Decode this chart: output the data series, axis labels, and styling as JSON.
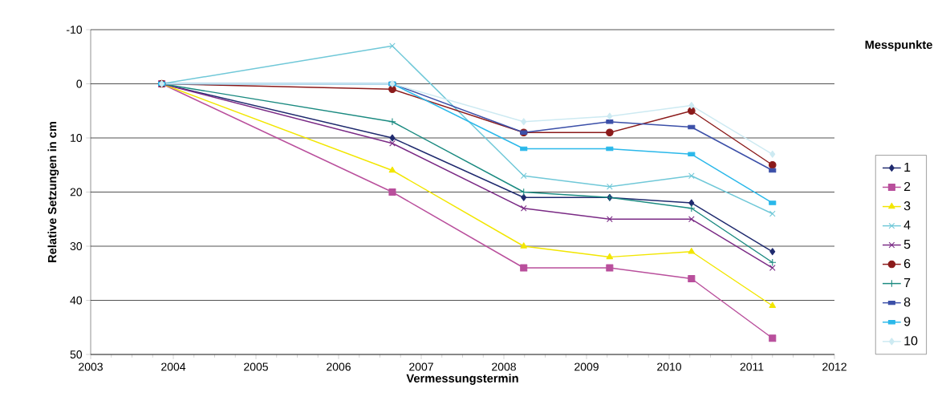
{
  "chart_data": {
    "type": "line",
    "xlabel": "Vermessungstermin",
    "ylabel": "Relative Setzungen in cm",
    "legend_title": "Messpunkte",
    "legend": "right",
    "grid": "y",
    "x": [
      2003.86,
      2006.65,
      2008.24,
      2009.28,
      2010.27,
      2011.25
    ],
    "xlim": [
      2003,
      2012
    ],
    "xticks": [
      2003,
      2004,
      2005,
      2006,
      2007,
      2008,
      2009,
      2010,
      2011,
      2012
    ],
    "ylim": [
      50,
      -10
    ],
    "yticks": [
      -10,
      0,
      10,
      20,
      30,
      40,
      50
    ],
    "series": [
      {
        "name": "1",
        "color": "#1f2a6e",
        "marker": "diamond",
        "values": [
          0,
          10,
          21,
          21,
          22,
          31
        ]
      },
      {
        "name": "2",
        "color": "#b94f9c",
        "marker": "square",
        "values": [
          0,
          20,
          34,
          34,
          36,
          47
        ]
      },
      {
        "name": "3",
        "color": "#f2e600",
        "marker": "triangle",
        "values": [
          0,
          16,
          30,
          32,
          31,
          41
        ]
      },
      {
        "name": "4",
        "color": "#70c8d8",
        "marker": "cross",
        "values": [
          0,
          -7,
          17,
          19,
          17,
          24
        ]
      },
      {
        "name": "5",
        "color": "#7a2a85",
        "marker": "cross",
        "values": [
          0,
          11,
          23,
          25,
          25,
          34
        ]
      },
      {
        "name": "6",
        "color": "#8b1a1a",
        "marker": "circle",
        "values": [
          0,
          1,
          9,
          9,
          5,
          15
        ]
      },
      {
        "name": "7",
        "color": "#1a8a80",
        "marker": "plus",
        "values": [
          0,
          7,
          20,
          21,
          23,
          33
        ]
      },
      {
        "name": "8",
        "color": "#3b4fa8",
        "marker": "square",
        "values": [
          0,
          0,
          9,
          7,
          8,
          16
        ]
      },
      {
        "name": "9",
        "color": "#2ab8ea",
        "marker": "square",
        "values": [
          0,
          0,
          12,
          12,
          13,
          22
        ]
      },
      {
        "name": "10",
        "color": "#cdeaf2",
        "marker": "diamond",
        "values": [
          0,
          0,
          7,
          6,
          4,
          13
        ]
      }
    ]
  }
}
